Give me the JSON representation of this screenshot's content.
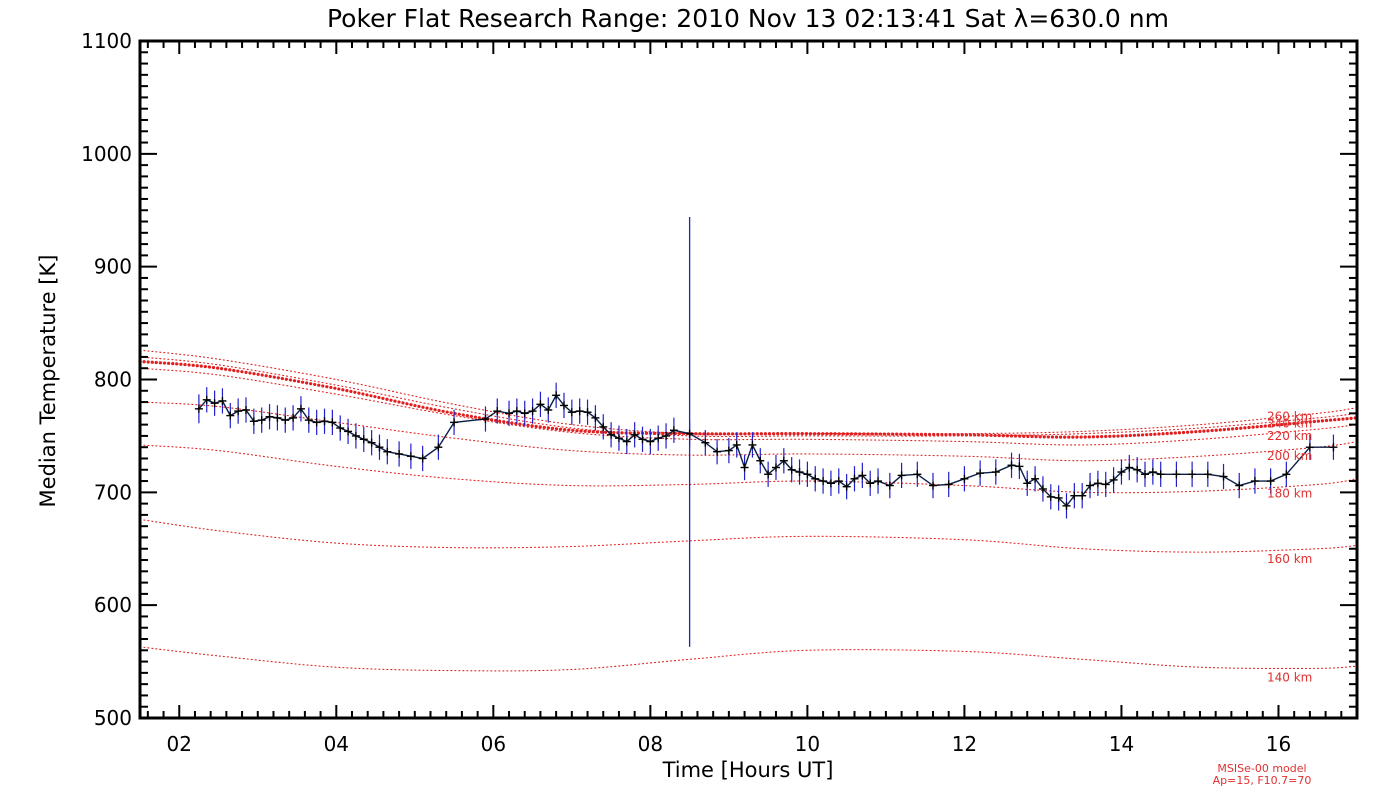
{
  "chart_data": {
    "type": "line",
    "title": "Poker Flat Research Range: 2010 Nov 13 02:13:41 Sat λ=630.0 nm",
    "xlabel": "Time [Hours UT]",
    "ylabel": "Median Temperature [K]",
    "xlim": [
      1.5,
      17.0
    ],
    "ylim": [
      500,
      1100
    ],
    "x_ticks": [
      2,
      4,
      6,
      8,
      10,
      12,
      14,
      16
    ],
    "x_tick_labels": [
      "02",
      "04",
      "06",
      "08",
      "10",
      "12",
      "14",
      "16"
    ],
    "y_ticks": [
      500,
      600,
      700,
      800,
      900,
      1000,
      1100
    ],
    "y_tick_labels": [
      "500",
      "600",
      "700",
      "800",
      "900",
      "1000",
      "1100"
    ],
    "grid": false,
    "colors": {
      "measured": "#0a1e46",
      "error_bar": "#2020c8",
      "model": "#e02020"
    },
    "series": [
      {
        "kind": "measured",
        "x": [
          2.25,
          2.35,
          2.45,
          2.55,
          2.65,
          2.75,
          2.85,
          2.95,
          3.05,
          3.15,
          3.25,
          3.35,
          3.45,
          3.55,
          3.65,
          3.75,
          3.85,
          3.95,
          4.05,
          4.15,
          4.25,
          4.35,
          4.45,
          4.55,
          4.65,
          4.8,
          4.95,
          5.1,
          5.3,
          5.5,
          5.9,
          6.05,
          6.2,
          6.3,
          6.4,
          6.5,
          6.6,
          6.7,
          6.8,
          6.9,
          7.0,
          7.1,
          7.2,
          7.3,
          7.4,
          7.5,
          7.6,
          7.7,
          7.8,
          7.9,
          8.0,
          8.1,
          8.2,
          8.3,
          8.5,
          8.7,
          8.85,
          9.0,
          9.1,
          9.2,
          9.3,
          9.4,
          9.5,
          9.6,
          9.7,
          9.8,
          9.9,
          10.0,
          10.1,
          10.2,
          10.3,
          10.4,
          10.5,
          10.6,
          10.7,
          10.8,
          10.9,
          11.05,
          11.2,
          11.4,
          11.6,
          11.8,
          12.0,
          12.2,
          12.4,
          12.6,
          12.7,
          12.8,
          12.9,
          13.0,
          13.1,
          13.2,
          13.3,
          13.4,
          13.5,
          13.6,
          13.7,
          13.8,
          13.9,
          14.0,
          14.1,
          14.2,
          14.3,
          14.4,
          14.5,
          14.7,
          14.9,
          15.1,
          15.3,
          15.5,
          15.7,
          15.9,
          16.1,
          16.4,
          16.7
        ],
        "y": [
          774,
          782,
          779,
          781,
          768,
          772,
          773,
          763,
          764,
          767,
          766,
          764,
          766,
          774,
          764,
          762,
          763,
          762,
          757,
          754,
          750,
          747,
          744,
          740,
          736,
          734,
          732,
          730,
          740,
          762,
          765,
          772,
          770,
          772,
          770,
          772,
          778,
          773,
          786,
          777,
          771,
          772,
          771,
          766,
          758,
          751,
          748,
          745,
          751,
          747,
          745,
          748,
          750,
          755,
          752,
          744,
          736,
          737,
          742,
          722,
          742,
          728,
          716,
          722,
          728,
          720,
          718,
          716,
          712,
          710,
          708,
          710,
          705,
          712,
          715,
          708,
          710,
          706,
          715,
          716,
          706,
          707,
          712,
          717,
          718,
          724,
          723,
          708,
          712,
          703,
          696,
          695,
          688,
          697,
          697,
          706,
          708,
          707,
          711,
          718,
          722,
          720,
          716,
          718,
          716,
          716,
          716,
          716,
          714,
          706,
          710,
          710,
          716,
          740,
          740
        ],
        "err": [
          8,
          7,
          7,
          7,
          7,
          7,
          7,
          7,
          7,
          7,
          7,
          7,
          7,
          7,
          7,
          7,
          7,
          7,
          7,
          7,
          7,
          7,
          7,
          7,
          7,
          7,
          7,
          7,
          7,
          7,
          7,
          7,
          7,
          7,
          7,
          7,
          7,
          7,
          7,
          7,
          7,
          7,
          7,
          7,
          7,
          7,
          7,
          7,
          7,
          7,
          7,
          7,
          7,
          7,
          7,
          7,
          7,
          7,
          7,
          7,
          7,
          7,
          7,
          7,
          7,
          7,
          7,
          7,
          7,
          7,
          7,
          7,
          7,
          7,
          7,
          7,
          7,
          7,
          7,
          7,
          7,
          7,
          7,
          7,
          7,
          7,
          7,
          7,
          7,
          7,
          7,
          7,
          7,
          7,
          7,
          7,
          7,
          7,
          7,
          7,
          7,
          7,
          7,
          7,
          7,
          7,
          7,
          7,
          7,
          7,
          7,
          7,
          7,
          7,
          7
        ]
      },
      {
        "kind": "model",
        "x": [
          1.5,
          2.5,
          4.0,
          5.5,
          7.0,
          8.5,
          10.0,
          12.0,
          13.5,
          15.0,
          16.5,
          17.0
        ],
        "y": [
          826,
          818,
          800,
          778,
          760,
          752,
          752,
          752,
          754,
          760,
          770,
          775
        ]
      },
      {
        "kind": "model",
        "x": [
          1.5,
          2.5,
          4.0,
          5.5,
          7.0,
          8.5,
          10.0,
          12.0,
          13.5,
          15.0,
          16.5,
          17.0
        ],
        "y": [
          820,
          813,
          795,
          774,
          757,
          750,
          750,
          750,
          752,
          757,
          766,
          770
        ]
      },
      {
        "kind": "model",
        "x": [
          1.5,
          2.5,
          4.0,
          5.5,
          7.0,
          8.5,
          10.0,
          12.0,
          13.5,
          15.0,
          16.5,
          17.0
        ],
        "y": [
          816,
          810,
          792,
          770,
          755,
          752,
          752,
          751,
          749,
          754,
          763,
          766
        ]
      },
      {
        "kind": "model",
        "x": [
          1.5,
          2.5,
          4.0,
          5.5,
          7.0,
          8.5,
          10.0,
          12.0,
          13.5,
          15.0,
          16.5,
          17.0
        ],
        "y": [
          810,
          804,
          787,
          768,
          753,
          747,
          747,
          745,
          742,
          747,
          756,
          760
        ]
      },
      {
        "kind": "model",
        "x": [
          1.5,
          2.5,
          4.0,
          5.5,
          7.0,
          8.5,
          10.0,
          12.0,
          13.5,
          15.0,
          16.5,
          17.0
        ],
        "y": [
          780,
          776,
          762,
          748,
          737,
          733,
          734,
          732,
          728,
          732,
          740,
          745
        ]
      },
      {
        "kind": "model",
        "x": [
          1.5,
          2.5,
          4.0,
          5.5,
          7.0,
          8.5,
          10.0,
          12.0,
          13.5,
          15.0,
          16.5,
          17.0
        ],
        "y": [
          742,
          737,
          723,
          712,
          706,
          707,
          710,
          706,
          700,
          701,
          707,
          712
        ]
      },
      {
        "kind": "model",
        "x": [
          1.5,
          2.5,
          4.0,
          5.5,
          7.0,
          8.5,
          10.0,
          12.0,
          13.5,
          15.0,
          16.5,
          17.0
        ],
        "y": [
          676,
          666,
          655,
          651,
          652,
          657,
          661,
          658,
          650,
          647,
          650,
          653
        ]
      },
      {
        "kind": "model",
        "x": [
          1.5,
          2.5,
          4.0,
          5.5,
          7.0,
          8.5,
          10.0,
          12.0,
          13.5,
          15.0,
          16.5,
          17.0
        ],
        "y": [
          563,
          555,
          545,
          542,
          543,
          552,
          560,
          559,
          552,
          545,
          544,
          546
        ]
      }
    ],
    "model_labels": [
      {
        "text": "260 km",
        "value": 767
      },
      {
        "text": "240 km",
        "value": 761
      },
      {
        "text": "220 km",
        "value": 750
      },
      {
        "text": "200 km",
        "value": 732
      },
      {
        "text": "180 km",
        "value": 699
      },
      {
        "text": "160 km",
        "value": 641
      },
      {
        "text": "140 km",
        "value": 536
      }
    ],
    "marker": {
      "x": 8.5,
      "ymin": 563,
      "ymax": 944
    },
    "footnote": [
      "MSISe-00 model",
      "Ap=15, F10.7=70"
    ]
  }
}
